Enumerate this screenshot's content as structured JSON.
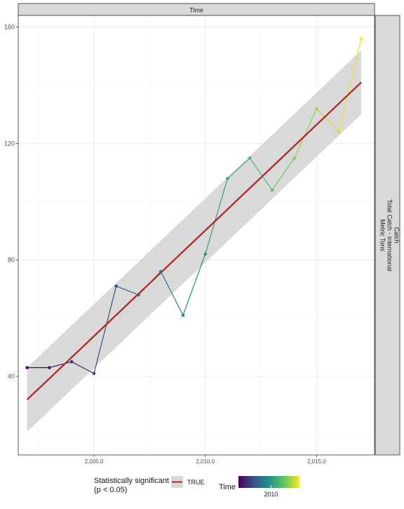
{
  "chart_data": {
    "type": "line",
    "facet_top_label": "Time",
    "facet_right_label_lines": [
      "Catch",
      "Total Catch - International",
      "Metric Tons"
    ],
    "x_tick_labels": [
      "2,005.0",
      "2,010.0",
      "2,015.0"
    ],
    "x_ticks": [
      2005,
      2010,
      2015
    ],
    "y_ticks": [
      40,
      80,
      120,
      160
    ],
    "y_tick_labels": [
      "40",
      "80",
      "120",
      "160"
    ],
    "xlim": [
      2001.6,
      2017.6
    ],
    "ylim": [
      13,
      164
    ],
    "grid": true,
    "points": [
      {
        "x": 2002,
        "y": 43
      },
      {
        "x": 2003,
        "y": 43
      },
      {
        "x": 2004,
        "y": 45
      },
      {
        "x": 2005,
        "y": 41
      },
      {
        "x": 2006,
        "y": 71
      },
      {
        "x": 2007,
        "y": 68
      },
      {
        "x": 2008,
        "y": 76
      },
      {
        "x": 2009,
        "y": 61
      },
      {
        "x": 2010,
        "y": 82
      },
      {
        "x": 2011,
        "y": 108
      },
      {
        "x": 2012,
        "y": 115
      },
      {
        "x": 2013,
        "y": 104
      },
      {
        "x": 2014,
        "y": 115
      },
      {
        "x": 2015,
        "y": 132
      },
      {
        "x": 2016,
        "y": 124
      },
      {
        "x": 2017,
        "y": 156
      }
    ],
    "trend": {
      "x": [
        2002,
        2017
      ],
      "y": [
        32,
        141
      ],
      "ci_lower": [
        21,
        130
      ],
      "ci_upper": [
        43,
        152
      ],
      "color": "#b22222",
      "band_color": "#d9d9d9"
    },
    "color_scale": {
      "name": "viridis",
      "domain": [
        2002,
        2017
      ],
      "stops": [
        "#440154",
        "#3b528b",
        "#21908c",
        "#5dc863",
        "#fde725"
      ]
    },
    "legend": {
      "position": "bottom",
      "sig_title_lines": [
        "Statistically significant",
        "(p < 0.05)"
      ],
      "sig_entry": "TRUE",
      "color_title": "Time",
      "color_tick_label": "2010",
      "color_tick_value": 2010
    }
  }
}
